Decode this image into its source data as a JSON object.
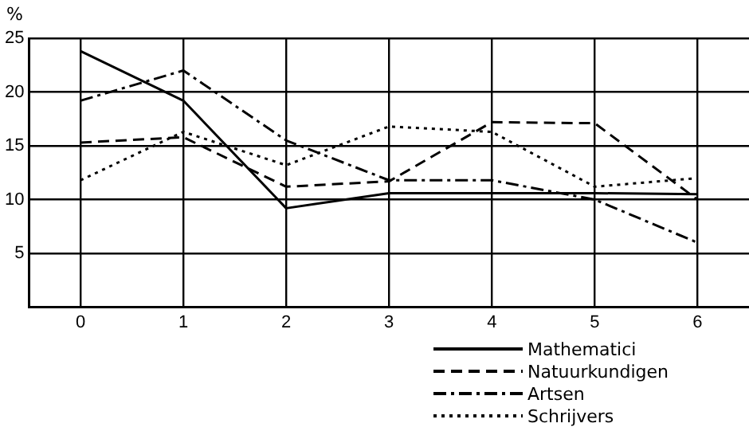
{
  "chart_data": {
    "type": "line",
    "ylabel": "%",
    "x": [
      0,
      1,
      2,
      3,
      4,
      5,
      6
    ],
    "xlim": [
      -0.5,
      6.5
    ],
    "xticks": [
      0,
      1,
      2,
      3,
      4,
      5,
      6
    ],
    "ylim": [
      0,
      25
    ],
    "yticks": [
      {
        "value": 0,
        "label": null
      },
      5,
      10,
      15,
      20,
      25
    ],
    "grid": true,
    "legend": "bottom right",
    "marker": "none",
    "series": [
      {
        "name": "Mathematici",
        "color": "#000000",
        "line_style": "solid",
        "values": [
          23.8,
          19.2,
          9.2,
          10.6,
          10.6,
          10.6,
          10.5
        ]
      },
      {
        "name": "Natuurkundigen",
        "color": "#000000",
        "line_style": "dashed",
        "values": [
          15.3,
          15.8,
          11.2,
          11.7,
          17.2,
          17.1,
          10
        ]
      },
      {
        "name": "Artsen",
        "color": "#000000",
        "line_style": "dashdot",
        "values": [
          19.2,
          22,
          15.5,
          11.8,
          11.8,
          10,
          6
        ]
      },
      {
        "name": "Schrijvers",
        "color": "#000000",
        "line_style": "dotted",
        "values": [
          11.8,
          16.3,
          13.2,
          16.8,
          16.3,
          11.2,
          12
        ]
      }
    ]
  }
}
